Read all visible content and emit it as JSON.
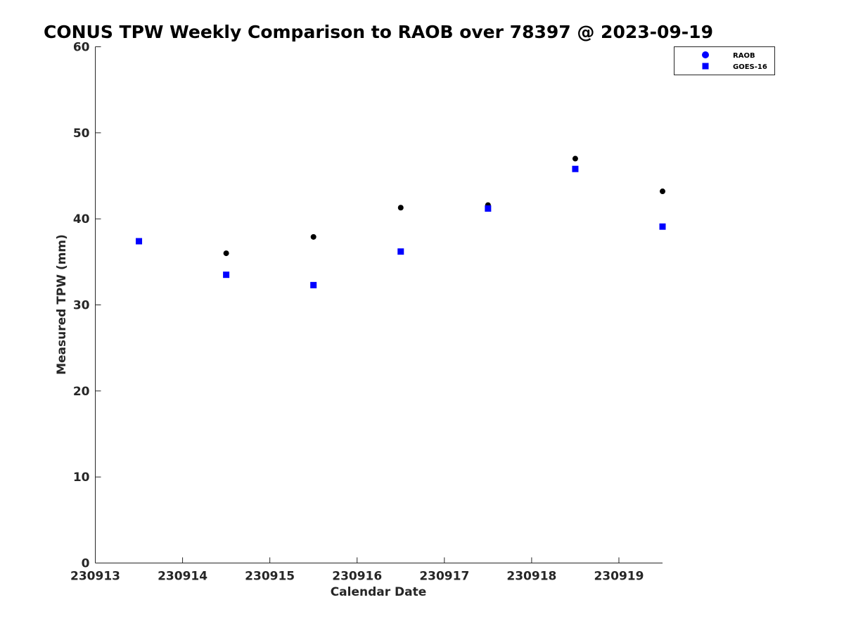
{
  "chart_data": {
    "type": "scatter",
    "title": "CONUS TPW Weekly Comparison to RAOB over 78397 @ 2023-09-19",
    "xlabel": "Calendar Date",
    "ylabel": "Measured TPW (mm)",
    "xlim": [
      "230913",
      "230919.5"
    ],
    "ylim": [
      0,
      60
    ],
    "x_ticks": [
      "230913",
      "230914",
      "230915",
      "230916",
      "230917",
      "230918",
      "230919"
    ],
    "y_ticks": [
      0,
      10,
      20,
      30,
      40,
      50,
      60
    ],
    "grid": false,
    "legend_position": "top-right",
    "series": [
      {
        "name": "RAOB",
        "marker": "circle",
        "color": "#000000",
        "legend_color": "#0000ff",
        "x": [
          "230914.5",
          "230915.5",
          "230916.5",
          "230917.5",
          "230918.5",
          "230919.5"
        ],
        "y": [
          36.0,
          37.9,
          41.3,
          41.6,
          47.0,
          43.2
        ]
      },
      {
        "name": "GOES-16",
        "marker": "square",
        "color": "#0000ff",
        "x": [
          "230913.5",
          "230914.5",
          "230915.5",
          "230916.5",
          "230917.5",
          "230918.5",
          "230919.5"
        ],
        "y": [
          37.4,
          33.5,
          32.3,
          36.2,
          41.2,
          45.8,
          39.1
        ]
      }
    ]
  }
}
